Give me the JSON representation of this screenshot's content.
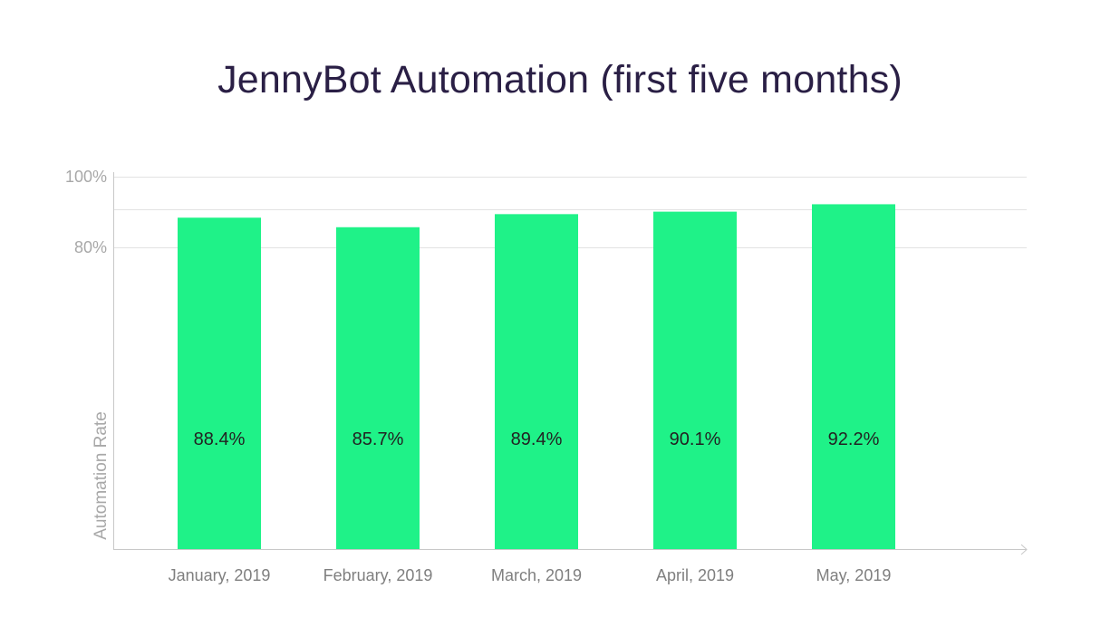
{
  "chart_data": {
    "type": "bar",
    "title": "JennyBot Automation (first five months)",
    "ylabel": "Automation Rate",
    "xlabel": "",
    "categories": [
      "January, 2019",
      "February, 2019",
      "March, 2019",
      "April, 2019",
      "May, 2019"
    ],
    "values": [
      88.4,
      85.7,
      89.4,
      90.1,
      92.2
    ],
    "data_labels": [
      "88.4%",
      "85.7%",
      "89.4%",
      "90.1%",
      "92.2%"
    ],
    "y_ticks": [
      {
        "value": 100,
        "label": "100%"
      },
      {
        "value": 80,
        "label": "80%"
      }
    ],
    "ylim": [
      0,
      100
    ],
    "grid": true,
    "bar_color": "#1ff288"
  }
}
